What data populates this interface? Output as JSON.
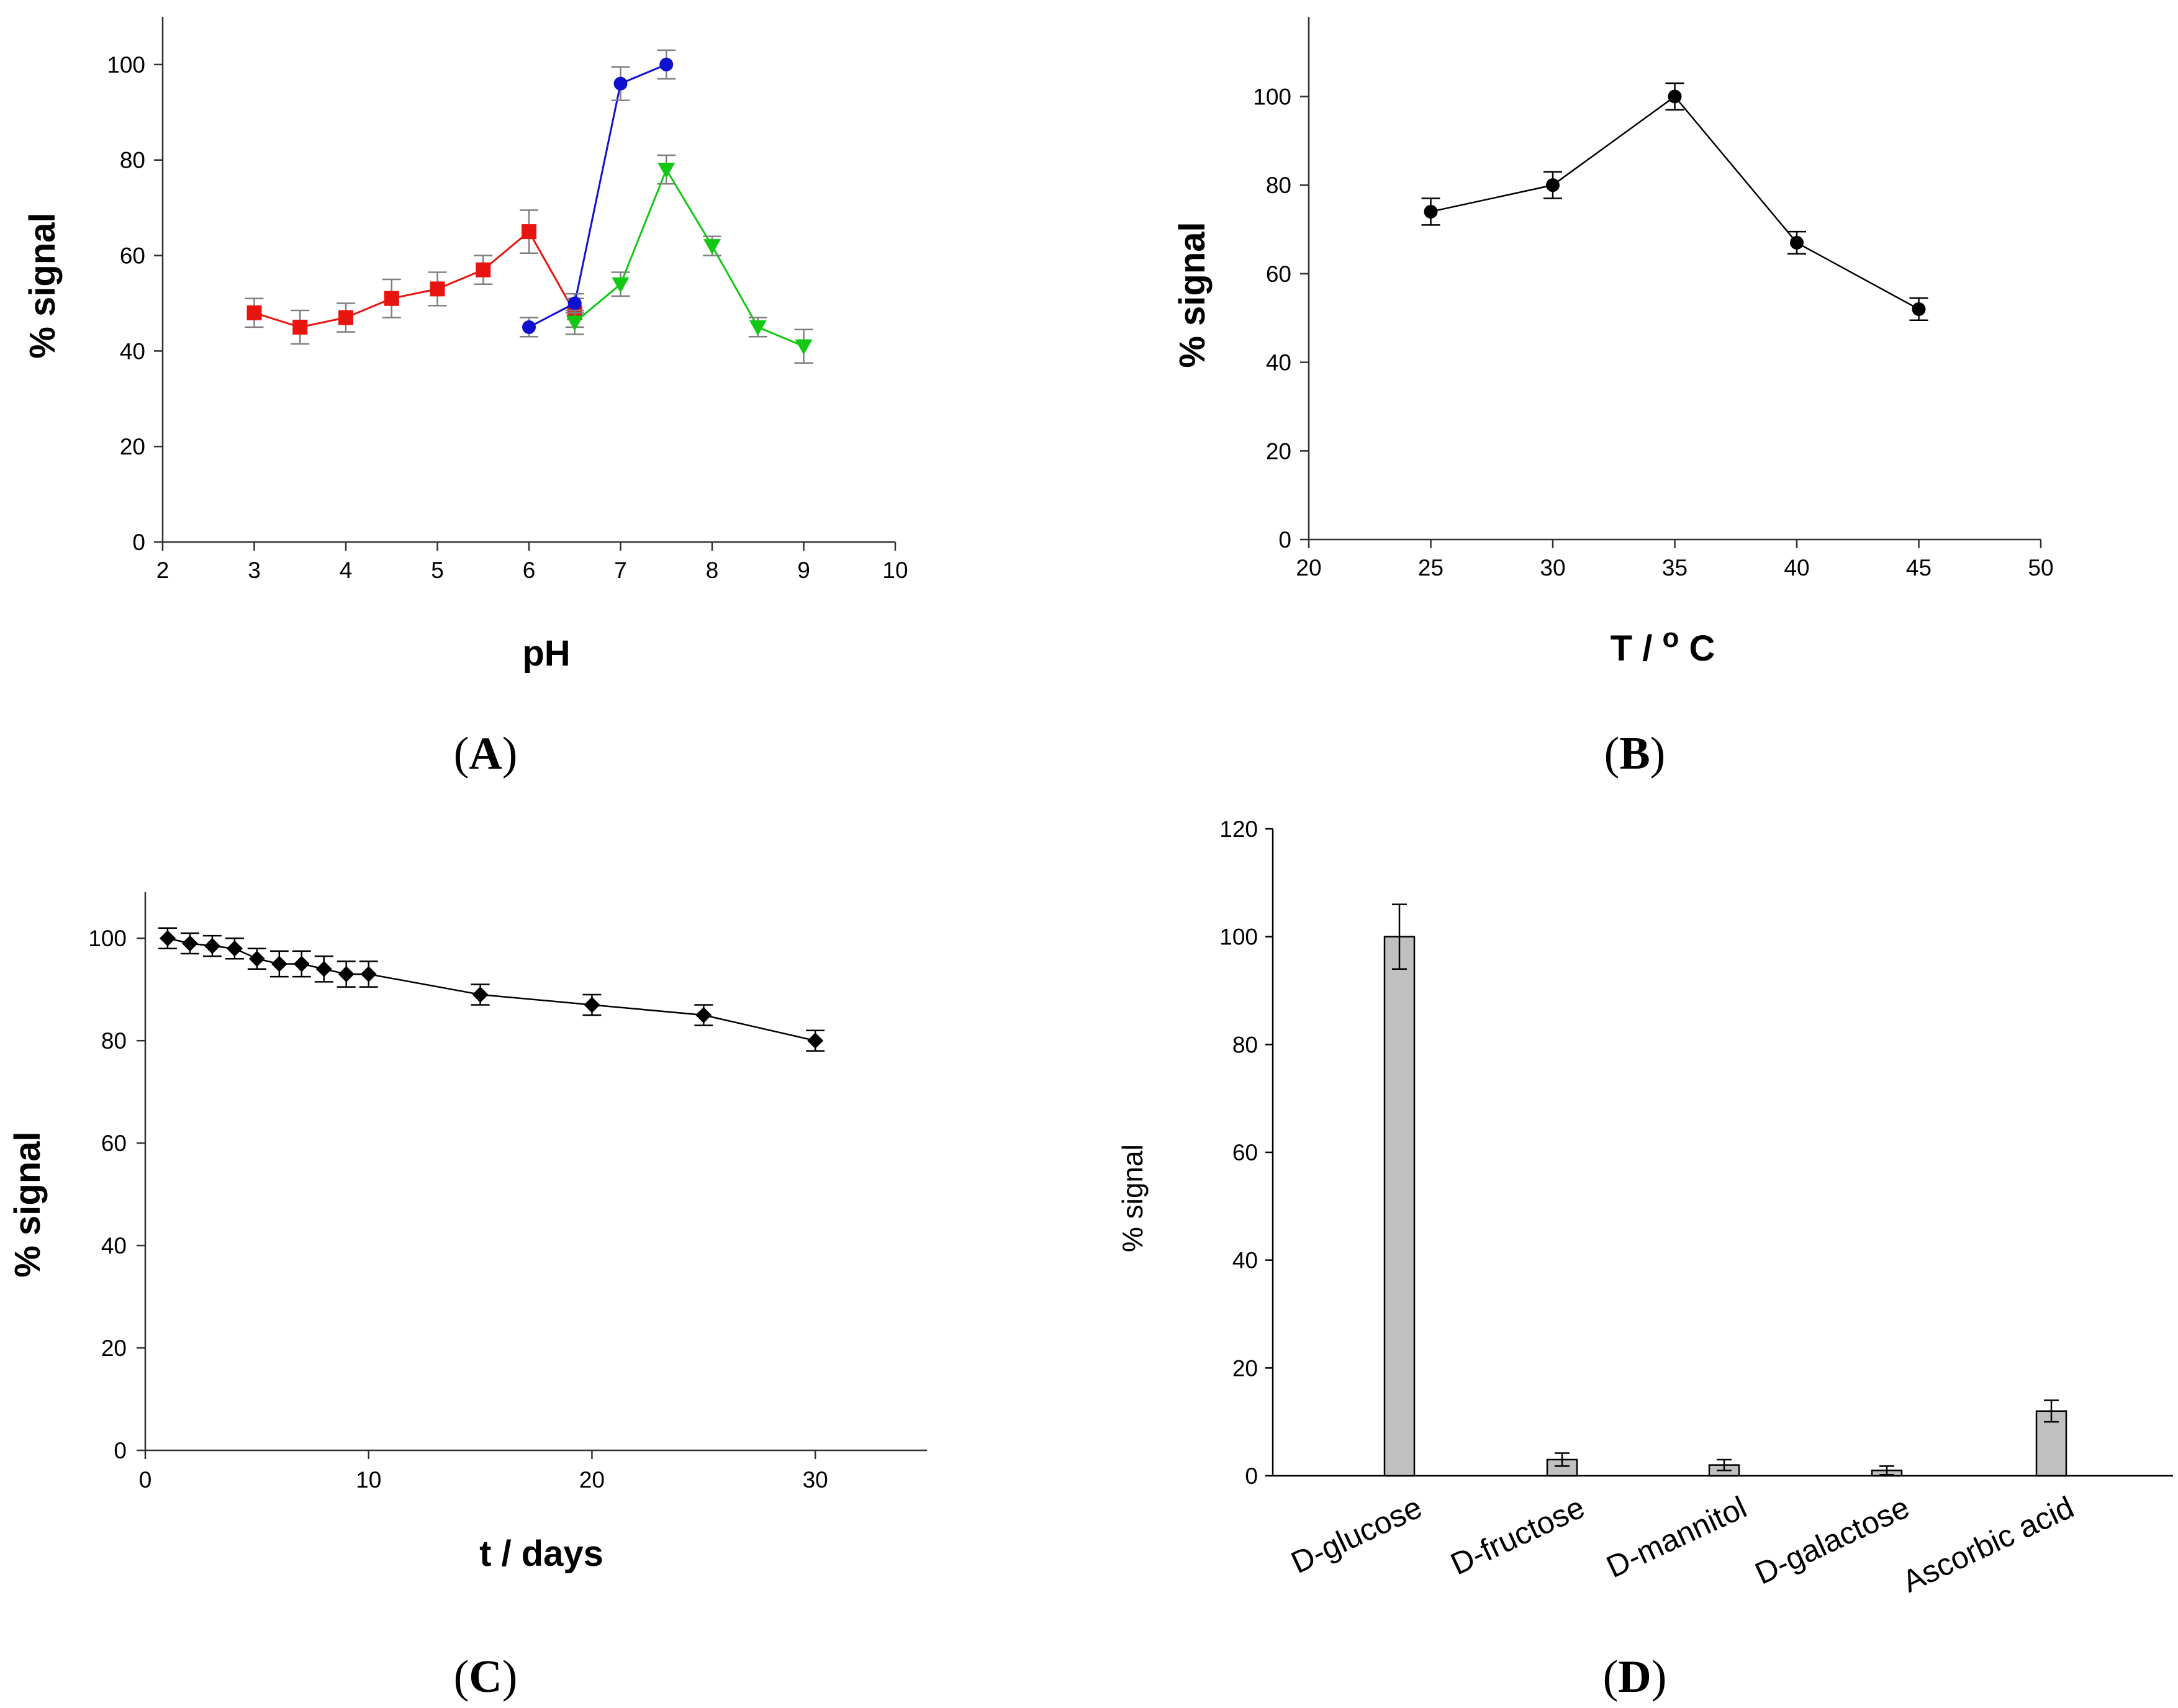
{
  "chart_data": [
    {
      "panel": "A",
      "type": "line",
      "xlabel": "pH",
      "ylabel": "% signal",
      "xlim": [
        2,
        10
      ],
      "ylim": [
        0,
        110
      ],
      "xticks": [
        2,
        3,
        4,
        5,
        6,
        7,
        8,
        9,
        10
      ],
      "yticks": [
        0,
        20,
        40,
        60,
        80,
        100
      ],
      "grid": false,
      "series": [
        {
          "color": "#e8140f",
          "marker": "square",
          "x": [
            3,
            3.5,
            4,
            4.5,
            5,
            5.5,
            6,
            6.5
          ],
          "y": [
            48,
            45,
            47,
            51,
            53,
            57,
            65,
            48
          ],
          "err": [
            3,
            3.5,
            3,
            4,
            3.5,
            3,
            4.5,
            3
          ]
        },
        {
          "color": "#1010d0",
          "marker": "circle",
          "x": [
            6,
            6.5,
            7,
            7.5
          ],
          "y": [
            45,
            50,
            96,
            100
          ],
          "err": [
            2,
            2,
            3.5,
            3
          ]
        },
        {
          "color": "#12c812",
          "marker": "triangle-down",
          "x": [
            6.5,
            7,
            7.5,
            8,
            8.5,
            9
          ],
          "y": [
            46,
            54,
            78,
            62,
            45,
            41
          ],
          "err": [
            2.5,
            2.5,
            3,
            2,
            2,
            3.5
          ]
        }
      ]
    },
    {
      "panel": "B",
      "type": "line",
      "xlabel": "T  / ",
      "xlabel_unit": "o",
      "xlabel_end": "C",
      "ylabel": "% signal",
      "xlim": [
        20,
        50
      ],
      "ylim": [
        0,
        118
      ],
      "xticks": [
        20,
        25,
        30,
        35,
        40,
        45,
        50
      ],
      "yticks": [
        0,
        20,
        40,
        60,
        80,
        100
      ],
      "grid": false,
      "series": [
        {
          "color": "#000000",
          "marker": "circle",
          "x": [
            25,
            30,
            35,
            40,
            45
          ],
          "y": [
            74,
            80,
            100,
            67,
            52
          ],
          "err": [
            3,
            3,
            3,
            2.5,
            2.5
          ]
        }
      ]
    },
    {
      "panel": "C",
      "type": "line",
      "xlabel": "t / days",
      "ylabel": "% signal",
      "xlim": [
        0,
        35
      ],
      "ylim": [
        0,
        109
      ],
      "xticks": [
        0,
        10,
        20,
        30
      ],
      "yticks": [
        0,
        20,
        40,
        60,
        80,
        100
      ],
      "grid": false,
      "series": [
        {
          "color": "#000000",
          "marker": "diamond",
          "x": [
            1,
            2,
            3,
            4,
            5,
            6,
            7,
            8,
            9,
            10,
            15,
            20,
            25,
            30
          ],
          "y": [
            100,
            99,
            98.5,
            98,
            96,
            95,
            95,
            94,
            93,
            93,
            89,
            87,
            85,
            80
          ],
          "err": [
            2,
            2,
            2,
            2,
            2,
            2.5,
            2.5,
            2.5,
            2.5,
            2.5,
            2,
            2,
            2,
            2
          ]
        }
      ]
    },
    {
      "panel": "D",
      "type": "bar",
      "ylabel": "% signal",
      "ylim": [
        0,
        120
      ],
      "yticks": [
        0,
        20,
        40,
        60,
        80,
        100,
        120
      ],
      "categories": [
        "D-glucose",
        "D-fructose",
        "D-mannitol",
        "D-galactose",
        "Ascorbic acid"
      ],
      "values": [
        100,
        3,
        2,
        1,
        12
      ],
      "err": [
        6,
        1.2,
        1,
        0.8,
        2
      ],
      "color": "#c0c0c0",
      "grid": false
    }
  ],
  "panel_labels": {
    "A": "A",
    "B": "B",
    "C": "C",
    "D": "D"
  }
}
